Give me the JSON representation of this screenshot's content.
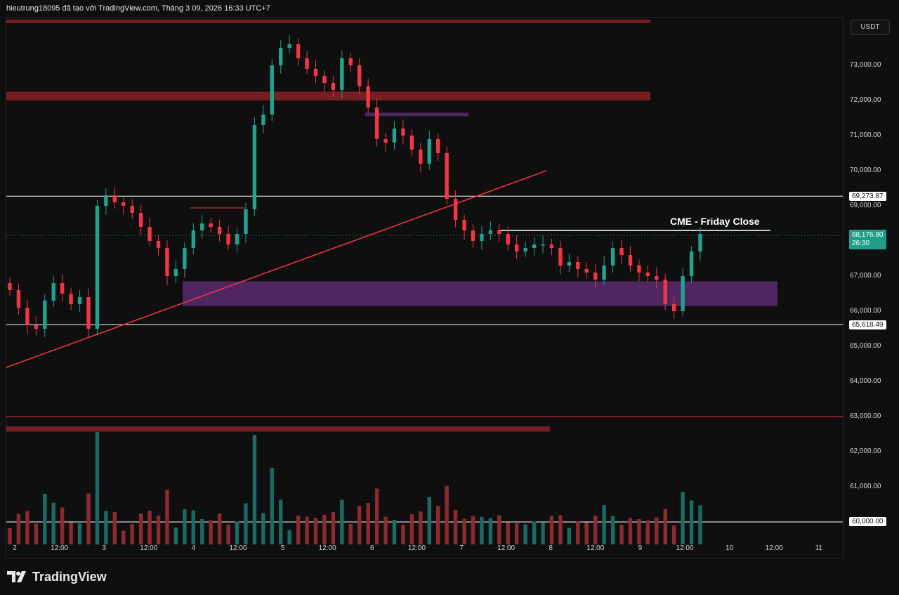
{
  "header": {
    "title": "hieutrung18095 đã tạo với TradingView.com, Tháng 3 09, 2026 16:33 UTC+7"
  },
  "currency_button": "USDT",
  "footer": {
    "brand": "TradingView"
  },
  "colors": {
    "bull": "#22a18f",
    "bear": "#f23645",
    "bull_vol": "#1a6b63",
    "bear_vol": "#8c2a30",
    "zone_red": "#7a1f24",
    "zone_purple": "#5b2a6e",
    "trendline": "#f23645",
    "level": "#ffffff"
  },
  "annotations": {
    "cme_label": "CME - Friday Close"
  },
  "price_tags": {
    "upper_level": "69,273.87",
    "lower_level": "65,618.49",
    "current_price": "68,176.80",
    "countdown": "26:30",
    "volume_level": "60,000.00"
  },
  "chart_data": {
    "type": "candlestick",
    "symbol_quote": "USDT",
    "y_ticks": [
      "73,000.00",
      "72,000.00",
      "71,000.00",
      "70,000.00",
      "69,000.00",
      "67,000.00",
      "66,000.00",
      "65,000.00",
      "64,000.00",
      "63,000.00",
      "62,000.00",
      "61,000.00"
    ],
    "y_tick_values": [
      73000,
      72000,
      71000,
      70000,
      69000,
      67000,
      66000,
      65000,
      64000,
      63000,
      62000,
      61000
    ],
    "ylim": [
      60000,
      74000
    ],
    "x_ticks": [
      "2",
      "12:00",
      "3",
      "12:00",
      "4",
      "12:00",
      "5",
      "12:00",
      "6",
      "12:00",
      "7",
      "12:00",
      "8",
      "12:00",
      "9",
      "12:00",
      "10",
      "12:00",
      "11"
    ],
    "horizontal_levels": [
      69273.87,
      65618.49,
      63000,
      60000
    ],
    "cme_friday_close": 68176.8,
    "zones": [
      {
        "name": "supply-top",
        "from": 74300,
        "to": 74200,
        "color": "red"
      },
      {
        "name": "supply",
        "from": 72250,
        "to": 72000,
        "color": "red"
      },
      {
        "name": "small-supply",
        "from": 71650,
        "to": 71550,
        "color": "purple"
      },
      {
        "name": "demand",
        "from": 66850,
        "to": 66150,
        "color": "purple"
      },
      {
        "name": "bottom",
        "from": 62720,
        "to": 62570,
        "color": "red"
      }
    ],
    "close_path": [
      66600,
      66100,
      65600,
      65500,
      66300,
      66800,
      66500,
      66200,
      66400,
      65500,
      69000,
      69300,
      69100,
      69000,
      68800,
      68400,
      68000,
      67800,
      67000,
      67200,
      67800,
      68300,
      68500,
      68400,
      68200,
      67900,
      68200,
      68900,
      71300,
      71600,
      73000,
      73500,
      73600,
      73200,
      72900,
      72700,
      72500,
      72300,
      73200,
      73000,
      72400,
      71800,
      70900,
      70800,
      71200,
      71000,
      70600,
      70200,
      70900,
      70500,
      69200,
      68600,
      68300,
      68000,
      68200,
      68300,
      68200,
      67900,
      67700,
      67800,
      67900,
      67900,
      67800,
      67300,
      67400,
      67200,
      67100,
      66900,
      67300,
      67800,
      67600,
      67300,
      67100,
      67000,
      66900,
      66200,
      66000,
      67000,
      67700,
      68200
    ]
  }
}
